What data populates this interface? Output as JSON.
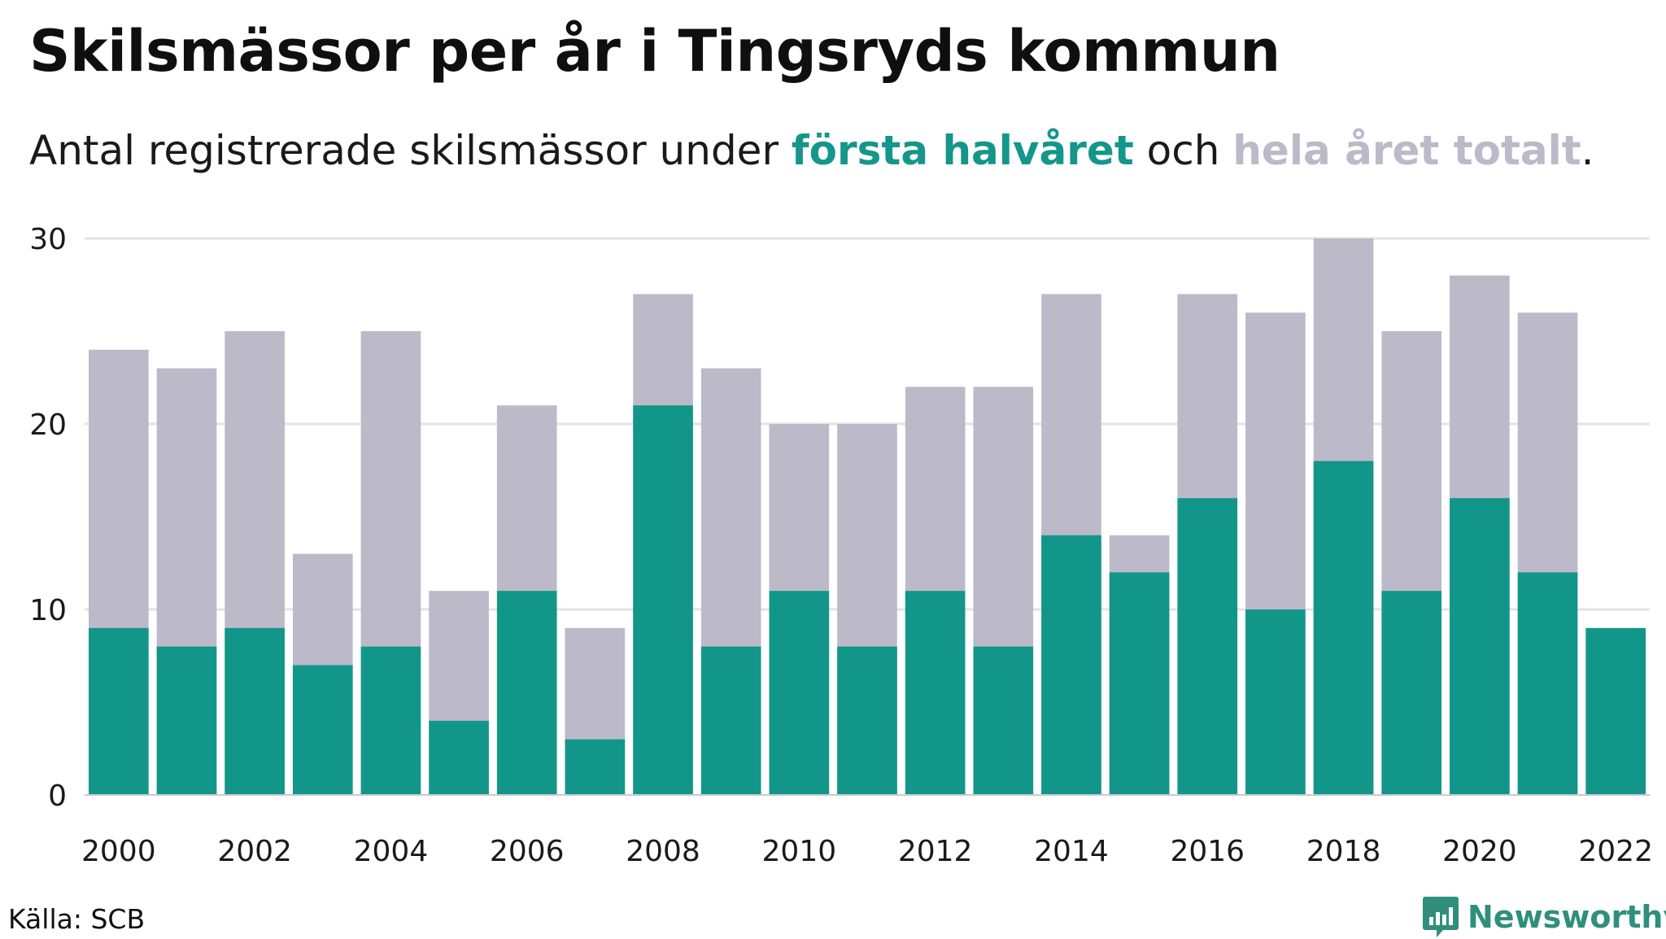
{
  "title": "Skilsmässor per år i Tingsryds kommun",
  "subtitle": {
    "prefix": "Antal registrerade skilsmässor under ",
    "first_half": "första halvåret",
    "middle": " och ",
    "total": "hela året totalt",
    "suffix": "."
  },
  "source": "Källa: SCB",
  "logo": {
    "text": "Newsworthy",
    "icon": "newsworthy-chart-icon"
  },
  "colors": {
    "first_half": "#13968a",
    "total": "#bcbac9",
    "grid": "#e3e3e6",
    "baseline": "#c9c9cf",
    "brand": "#2f8f7c"
  },
  "chart_data": {
    "type": "bar",
    "stacked": "overlay",
    "categories": [
      "2000",
      "2001",
      "2002",
      "2003",
      "2004",
      "2005",
      "2006",
      "2007",
      "2008",
      "2009",
      "2010",
      "2011",
      "2012",
      "2013",
      "2014",
      "2015",
      "2016",
      "2017",
      "2018",
      "2019",
      "2020",
      "2021",
      "2022"
    ],
    "x_tick_labels": [
      "2000",
      "2002",
      "2004",
      "2006",
      "2008",
      "2010",
      "2012",
      "2014",
      "2016",
      "2018",
      "2020",
      "2022"
    ],
    "series": [
      {
        "name": "hela året totalt",
        "values": [
          24,
          23,
          25,
          13,
          25,
          11,
          21,
          9,
          27,
          23,
          20,
          20,
          22,
          22,
          27,
          14,
          27,
          26,
          30,
          25,
          28,
          26,
          null
        ]
      },
      {
        "name": "första halvåret",
        "values": [
          9,
          8,
          9,
          7,
          8,
          4,
          11,
          3,
          21,
          8,
          11,
          8,
          11,
          8,
          14,
          12,
          16,
          10,
          18,
          11,
          16,
          12,
          9
        ]
      }
    ],
    "ylim": [
      0,
      30
    ],
    "y_ticks": [
      0,
      10,
      20,
      30
    ],
    "grid": true,
    "xlabel": "",
    "ylabel": ""
  }
}
